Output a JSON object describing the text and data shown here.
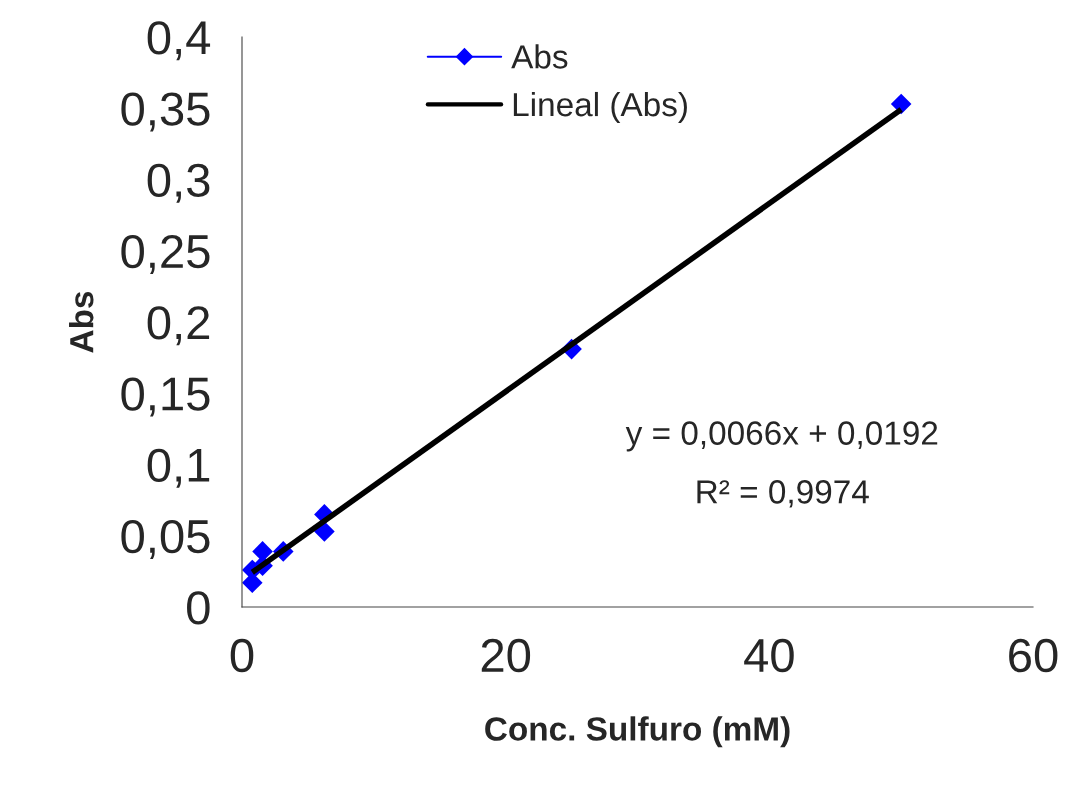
{
  "chart_data": {
    "type": "scatter",
    "xlabel": "Conc. Sulfuro (mM)",
    "ylabel": "Abs",
    "xlim": [
      0,
      60
    ],
    "xticks": [
      0,
      20,
      40,
      60
    ],
    "ylim": [
      0,
      0.4
    ],
    "yticks": [
      0,
      {
        "value": 0.05,
        "label": "0,05"
      },
      {
        "value": 0.1,
        "label": "0,1"
      },
      {
        "value": 0.15,
        "label": "0,15"
      },
      {
        "value": 0.2,
        "label": "0,2"
      },
      {
        "value": 0.25,
        "label": "0,25"
      },
      {
        "value": 0.3,
        "label": "0,3"
      },
      {
        "value": 0.35,
        "label": "0,35"
      },
      {
        "value": 0.4,
        "label": "0,4"
      }
    ],
    "grid": false,
    "legend": "top",
    "series": [
      {
        "name": "Abs",
        "marker": "diamond",
        "color": "#0000ff",
        "x": [
          0.78,
          0.78,
          1.56,
          1.56,
          3.13,
          6.25,
          6.25,
          25,
          50
        ],
        "values": [
          0.017,
          0.026,
          0.039,
          0.029,
          0.039,
          0.065,
          0.053,
          0.181,
          0.353
        ]
      },
      {
        "name": "Lineal (Abs)",
        "type": "line",
        "marker": "none",
        "color": "#000000",
        "x": [
          0.78,
          50
        ],
        "values": [
          0.0243,
          0.3492
        ]
      }
    ],
    "annotations": [
      "y = 0,0066x + 0,0192",
      "R² = 0,9974"
    ]
  }
}
